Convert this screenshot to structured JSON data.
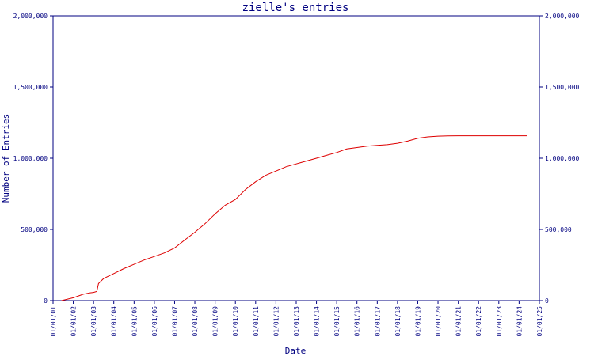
{
  "chart_data": {
    "type": "line",
    "title": "zielle's entries",
    "xlabel": "Date",
    "ylabel": "Number of Entries",
    "x_ticks": [
      "01/01/01",
      "01/01/02",
      "01/01/03",
      "01/01/04",
      "01/01/05",
      "01/01/06",
      "01/01/07",
      "01/01/08",
      "01/01/09",
      "01/01/10",
      "01/01/11",
      "01/01/12",
      "01/01/13",
      "01/01/14",
      "01/01/15",
      "01/01/16",
      "01/01/17",
      "01/01/18",
      "01/01/19",
      "01/01/20",
      "01/01/21",
      "01/01/22",
      "01/01/23",
      "01/01/24",
      "01/01/25"
    ],
    "y_ticks": [
      {
        "value": 0,
        "label": "0"
      },
      {
        "value": 500000,
        "label": "500,000"
      },
      {
        "value": 1000000,
        "label": "1,000,000"
      },
      {
        "value": 1500000,
        "label": "1,500,000"
      },
      {
        "value": 2000000,
        "label": "2,000,000"
      }
    ],
    "y_ticks_right": [
      {
        "value": 0,
        "label": "0"
      },
      {
        "value": 500000,
        "label": "500,000"
      },
      {
        "value": 1000000,
        "label": "1,000,000"
      },
      {
        "value": 1500000,
        "label": "1,500,000"
      },
      {
        "value": 2000000,
        "label": "2,000,000"
      }
    ],
    "xlim": [
      "01/01/01",
      "01/01/25"
    ],
    "ylim": [
      0,
      2000000
    ],
    "grid": false,
    "colors": {
      "axis": "#000080",
      "line": "#dd0000",
      "background": "#ffffff"
    },
    "series": [
      {
        "values": [
          [
            "01/06/01",
            0
          ],
          [
            "01/01/02",
            20000
          ],
          [
            "01/07/02",
            45000
          ],
          [
            "01/11/02",
            55000
          ],
          [
            "01/01/03",
            58000
          ],
          [
            "01/03/03",
            65000
          ],
          [
            "01/04/03",
            120000
          ],
          [
            "01/07/03",
            155000
          ],
          [
            "01/01/04",
            190000
          ],
          [
            "01/07/04",
            225000
          ],
          [
            "01/01/05",
            255000
          ],
          [
            "01/07/05",
            285000
          ],
          [
            "01/01/06",
            310000
          ],
          [
            "01/07/06",
            335000
          ],
          [
            "01/01/07",
            370000
          ],
          [
            "01/07/07",
            425000
          ],
          [
            "01/01/08",
            480000
          ],
          [
            "01/07/08",
            540000
          ],
          [
            "01/01/09",
            610000
          ],
          [
            "01/07/09",
            670000
          ],
          [
            "01/01/10",
            710000
          ],
          [
            "01/07/10",
            780000
          ],
          [
            "01/01/11",
            835000
          ],
          [
            "01/07/11",
            880000
          ],
          [
            "01/01/12",
            910000
          ],
          [
            "01/07/12",
            940000
          ],
          [
            "01/01/13",
            960000
          ],
          [
            "01/07/13",
            980000
          ],
          [
            "01/01/14",
            1000000
          ],
          [
            "01/07/14",
            1020000
          ],
          [
            "01/01/15",
            1040000
          ],
          [
            "01/07/15",
            1065000
          ],
          [
            "01/01/16",
            1075000
          ],
          [
            "01/07/16",
            1085000
          ],
          [
            "01/01/17",
            1090000
          ],
          [
            "01/07/17",
            1095000
          ],
          [
            "01/01/18",
            1105000
          ],
          [
            "01/07/18",
            1120000
          ],
          [
            "01/01/19",
            1140000
          ],
          [
            "01/07/19",
            1150000
          ],
          [
            "01/01/20",
            1155000
          ],
          [
            "01/07/20",
            1157000
          ],
          [
            "01/01/21",
            1158000
          ],
          [
            "01/01/22",
            1158000
          ],
          [
            "01/01/23",
            1158000
          ],
          [
            "01/01/24",
            1158000
          ],
          [
            "01/06/24",
            1158000
          ]
        ]
      }
    ]
  }
}
